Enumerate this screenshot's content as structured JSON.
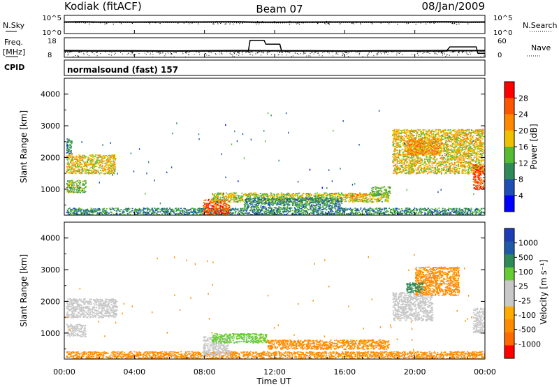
{
  "header": {
    "radar": "Kodiak (fitACF)",
    "beam": "Beam 07",
    "date": "08/Jan/2009"
  },
  "noise_panel": {
    "left_label": "N.Sky",
    "right_label": "N.Search",
    "left_ticks": [
      "10^5",
      "10^0"
    ],
    "right_ticks": [
      "10^5",
      "10^0"
    ]
  },
  "freq_panel": {
    "left_label": "Freq.",
    "left_unit": "[MHz]",
    "right_label": "Nave",
    "left_ticks": [
      "18",
      "8"
    ],
    "right_ticks": [
      "60",
      "0"
    ]
  },
  "cpid": {
    "label": "CPID",
    "value": "normalsound (fast) 157"
  },
  "colors": {
    "power": [
      "#0000ff",
      "#1e4fb4",
      "#2e8b57",
      "#55bb33",
      "#f0c000",
      "#ff8800",
      "#ff5500",
      "#ff0000"
    ],
    "velocity": [
      "#ff0000",
      "#ff6a00",
      "#ff8c00",
      "#ffaa00",
      "#c8c8c8",
      "#c8c8c8",
      "#66cc33",
      "#2e8b57",
      "#1e5aa8",
      "#1e3cb4"
    ],
    "ground_scatter": "#c8c8c8"
  },
  "chart_data": [
    {
      "type": "line",
      "name": "noise",
      "x_unit": "hours UT",
      "y_scale": "log",
      "ylim": [
        1,
        100000
      ],
      "series": [
        {
          "name": "N.Sky",
          "x": [
            0,
            1,
            2,
            3,
            4,
            5,
            6,
            7,
            8,
            9,
            10,
            11,
            12,
            13,
            14,
            15,
            16,
            17,
            18,
            19,
            20,
            21,
            22,
            23,
            24
          ],
          "y": [
            1500,
            1600,
            1400,
            1500,
            1400,
            1500,
            1500,
            1500,
            1500,
            1600,
            1700,
            1300,
            1300,
            1400,
            1400,
            1500,
            1500,
            1500,
            1500,
            1500,
            1500,
            1600,
            1700,
            1400,
            1500
          ]
        },
        {
          "name": "N.Search",
          "x": [
            0,
            2,
            4,
            6,
            8,
            10,
            12,
            14,
            16,
            18,
            20,
            22,
            24
          ],
          "y": [
            1000,
            1000,
            1000,
            1000,
            1000,
            1000,
            800,
            900,
            1000,
            1000,
            1000,
            1000,
            1000
          ]
        }
      ]
    },
    {
      "type": "line",
      "name": "frequency-nave",
      "x_unit": "hours UT",
      "series": [
        {
          "name": "Freq.",
          "ylim": [
            8,
            18
          ],
          "x": [
            0,
            2,
            4,
            6,
            8,
            10,
            12,
            14,
            16,
            18,
            20,
            22,
            24
          ],
          "y": [
            11.4,
            11.3,
            11.3,
            11.2,
            11.3,
            11.4,
            11.3,
            11.3,
            11.2,
            11.3,
            11.3,
            11.4,
            11.4
          ]
        },
        {
          "name": "Nave",
          "ylim": [
            0,
            60
          ],
          "x": [
            0,
            10.5,
            10.6,
            11.4,
            11.5,
            12.3,
            12.4,
            21.8,
            22,
            23.5,
            23.6,
            24
          ],
          "y": [
            19,
            19,
            52,
            52,
            40,
            40,
            19,
            19,
            32,
            32,
            12,
            12
          ]
        }
      ]
    },
    {
      "type": "heatmap",
      "name": "power",
      "xlabel": "",
      "ylabel": "Slant Range [km]",
      "colorbar_label": "Power [dB]",
      "colorbar_ticks": [
        "28",
        "24",
        "20",
        "16",
        "12",
        "8",
        "4"
      ],
      "color_range": [
        0,
        32
      ],
      "xlim": [
        0,
        24
      ],
      "ylim": [
        180,
        4500
      ],
      "yticks": [
        "1000",
        "2000",
        "3000",
        "4000"
      ],
      "regions": [
        {
          "t0": 0.1,
          "t1": 2.9,
          "r0": 1500,
          "r1": 2100,
          "level": 18
        },
        {
          "t0": 0.1,
          "t1": 1.2,
          "r0": 900,
          "r1": 1300,
          "level": 14
        },
        {
          "t0": 0.1,
          "t1": 0.4,
          "r0": 2100,
          "r1": 2600,
          "level": 10
        },
        {
          "t0": 0.1,
          "t1": 24,
          "r0": 190,
          "r1": 420,
          "level": 10
        },
        {
          "t0": 7.9,
          "t1": 9.4,
          "r0": 200,
          "r1": 700,
          "level": 26
        },
        {
          "t0": 8.4,
          "t1": 18.5,
          "r0": 600,
          "r1": 900,
          "level": 16
        },
        {
          "t0": 10.2,
          "t1": 15.8,
          "r0": 420,
          "r1": 750,
          "level": 10
        },
        {
          "t0": 16.0,
          "t1": 17.2,
          "r0": 750,
          "r1": 860,
          "level": 22
        },
        {
          "t0": 17.5,
          "t1": 18.6,
          "r0": 800,
          "r1": 1100,
          "level": 14
        },
        {
          "t0": 18.7,
          "t1": 23.9,
          "r0": 1500,
          "r1": 2900,
          "level": 18
        },
        {
          "t0": 19.5,
          "t1": 21.5,
          "r0": 2100,
          "r1": 2600,
          "level": 22
        },
        {
          "t0": 23.3,
          "t1": 24.0,
          "r0": 1000,
          "r1": 1800,
          "level": 26
        }
      ]
    },
    {
      "type": "heatmap",
      "name": "velocity",
      "xlabel": "Time UT",
      "ylabel": "Slant Range [km]",
      "colorbar_label": "Velocity [m s⁻¹]",
      "colorbar_ticks": [
        "1000",
        "500",
        "100",
        "25",
        "-25",
        "-100",
        "-500",
        "-1000"
      ],
      "color_range": [
        -1250,
        1250
      ],
      "xlim": [
        0,
        24
      ],
      "ylim": [
        180,
        4500
      ],
      "xticks": [
        "00:00",
        "04:00",
        "08:00",
        "12:00",
        "16:00",
        "20:00",
        "00:00"
      ],
      "yticks": [
        "1000",
        "2000",
        "3000",
        "4000"
      ],
      "regions": [
        {
          "t0": 0.1,
          "t1": 3.0,
          "r0": 1500,
          "r1": 2100,
          "kind": "gs"
        },
        {
          "t0": 0.1,
          "t1": 1.2,
          "r0": 900,
          "r1": 1300,
          "kind": "gs"
        },
        {
          "t0": 0.1,
          "t1": 24,
          "r0": 190,
          "r1": 430,
          "value": -150
        },
        {
          "t0": 7.9,
          "t1": 9.4,
          "r0": 300,
          "r1": 900,
          "kind": "gs"
        },
        {
          "t0": 8.4,
          "t1": 11.5,
          "r0": 700,
          "r1": 1000,
          "value": 60
        },
        {
          "t0": 11.5,
          "t1": 18.5,
          "r0": 500,
          "r1": 800,
          "value": -150
        },
        {
          "t0": 18.7,
          "t1": 21.0,
          "r0": 1400,
          "r1": 2300,
          "kind": "gs"
        },
        {
          "t0": 20.0,
          "t1": 22.5,
          "r0": 2200,
          "r1": 3100,
          "value": -300
        },
        {
          "t0": 19.5,
          "t1": 20.5,
          "r0": 2300,
          "r1": 2600,
          "value": 200
        },
        {
          "t0": 23.3,
          "t1": 24.0,
          "r0": 1000,
          "r1": 1800,
          "kind": "gs"
        }
      ]
    }
  ]
}
